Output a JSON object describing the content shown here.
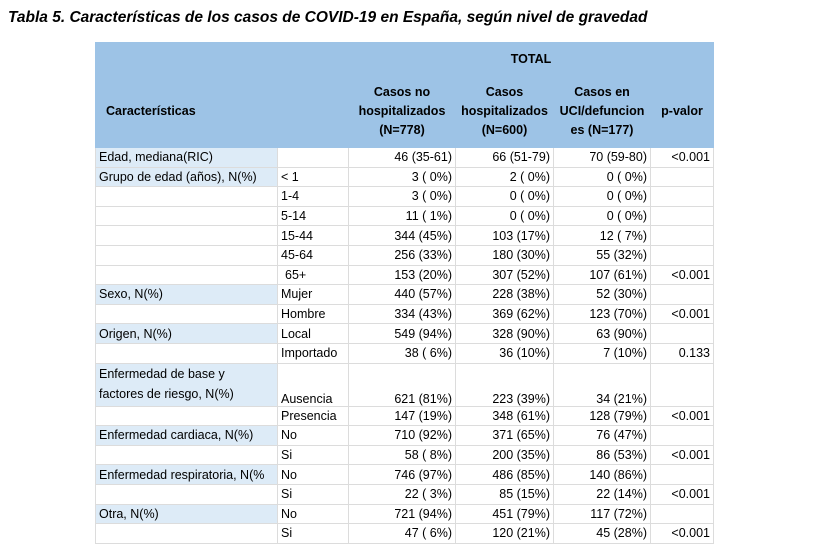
{
  "title": "Tabla 5. Características de los casos de COVID-19 en España, según nivel de gravedad",
  "table": {
    "group_header": "TOTAL",
    "header": [
      "Características",
      [
        "Casos no",
        "hospitalizados",
        "(N=778)"
      ],
      [
        "Casos",
        "hospitalizados",
        "(N=600)"
      ],
      [
        "Casos en",
        "UCI/defuncion",
        "es (N=177)"
      ],
      "p-valor"
    ],
    "rows": [
      [
        "Edad, mediana(RIC)",
        null,
        "46 (35-61)",
        "66 (51-79)",
        "70 (59-80)",
        "<0.001"
      ],
      [
        "Grupo de edad (años), N(%)",
        "< 1",
        "3 ( 0%)",
        "2 ( 0%)",
        "0 ( 0%)",
        null
      ],
      [
        null,
        "1-4",
        "3 ( 0%)",
        "0 ( 0%)",
        "0 ( 0%)",
        null
      ],
      [
        null,
        "5-14",
        "11 ( 1%)",
        "0 ( 0%)",
        "0 ( 0%)",
        null
      ],
      [
        null,
        "15-44",
        "344 (45%)",
        "103 (17%)",
        "12 ( 7%)",
        null
      ],
      [
        null,
        "45-64",
        "256 (33%)",
        "180 (30%)",
        "55 (32%)",
        null
      ],
      [
        null,
        "65+",
        "153 (20%)",
        "307 (52%)",
        "107 (61%)",
        "<0.001"
      ],
      [
        "Sexo, N(%)",
        "Mujer",
        "440 (57%)",
        "228 (38%)",
        "52 (30%)",
        null
      ],
      [
        null,
        "Hombre",
        "334 (43%)",
        "369 (62%)",
        "123 (70%)",
        "<0.001"
      ],
      [
        "Origen, N(%)",
        "Local",
        "549 (94%)",
        "328 (90%)",
        "63 (90%)",
        null
      ],
      [
        null,
        "Importado",
        "38 ( 6%)",
        "36 (10%)",
        "7 (10%)",
        "0.133"
      ],
      [
        "Enfermedad de base y factores de riesgo, N(%)",
        "Ausencia",
        "621 (81%)",
        "223 (39%)",
        "34 (21%)",
        null
      ],
      [
        null,
        "Presencia",
        "147 (19%)",
        "348 (61%)",
        "128 (79%)",
        "<0.001"
      ],
      [
        "Enfermedad cardiaca, N(%)",
        "No",
        "710 (92%)",
        "371 (65%)",
        "76 (47%)",
        null
      ],
      [
        null,
        "Si",
        "58 ( 8%)",
        "200 (35%)",
        "86 (53%)",
        "<0.001"
      ],
      [
        "Enfermedad respiratoria, N(%",
        "No",
        "746 (97%)",
        "486 (85%)",
        "140 (86%)",
        null
      ],
      [
        null,
        "Si",
        "22 ( 3%)",
        "85 (15%)",
        "22 (14%)",
        "<0.001"
      ],
      [
        "Otra, N(%)",
        "No",
        "721 (94%)",
        "451 (79%)",
        "117 (72%)",
        null
      ],
      [
        null,
        "Si",
        "47 ( 6%)",
        "120 (21%)",
        "45 (28%)",
        "<0.001"
      ]
    ]
  }
}
